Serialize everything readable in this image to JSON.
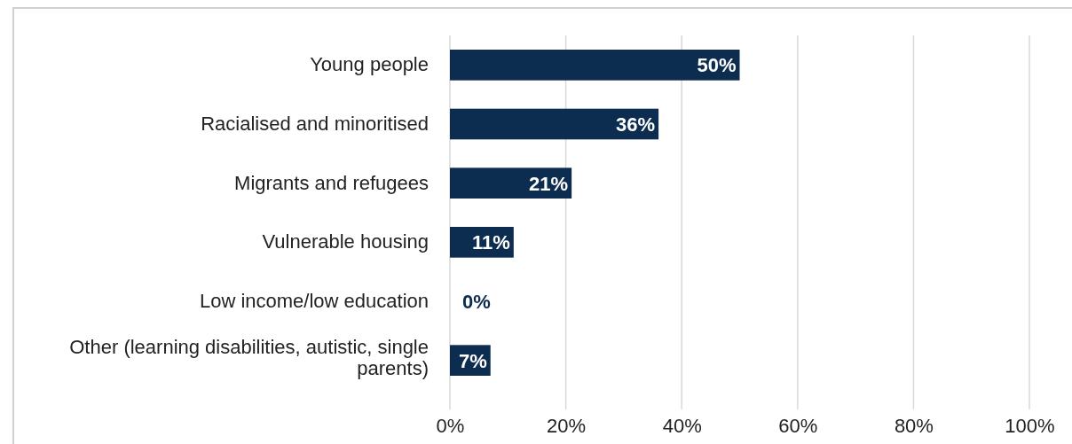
{
  "chart_data": {
    "type": "bar",
    "orientation": "horizontal",
    "categories": [
      "Young people",
      "Racialised and minoritised",
      "Migrants and refugees",
      "Vulnerable housing",
      "Low income/low education",
      "Other (learning disabilities, autistic, single parents)"
    ],
    "values": [
      50,
      36,
      21,
      11,
      0,
      7
    ],
    "value_labels": [
      "50%",
      "36%",
      "21%",
      "11%",
      "0%",
      "7%"
    ],
    "color": "#0c2d4f",
    "xlim": [
      0,
      100
    ],
    "xticks": [
      {
        "value": 0,
        "label": "0%"
      },
      {
        "value": 20,
        "label": "20%"
      },
      {
        "value": 40,
        "label": "40%"
      },
      {
        "value": 60,
        "label": "60%"
      },
      {
        "value": 80,
        "label": "80%"
      },
      {
        "value": 100,
        "label": "100%"
      }
    ],
    "grid": "x"
  }
}
